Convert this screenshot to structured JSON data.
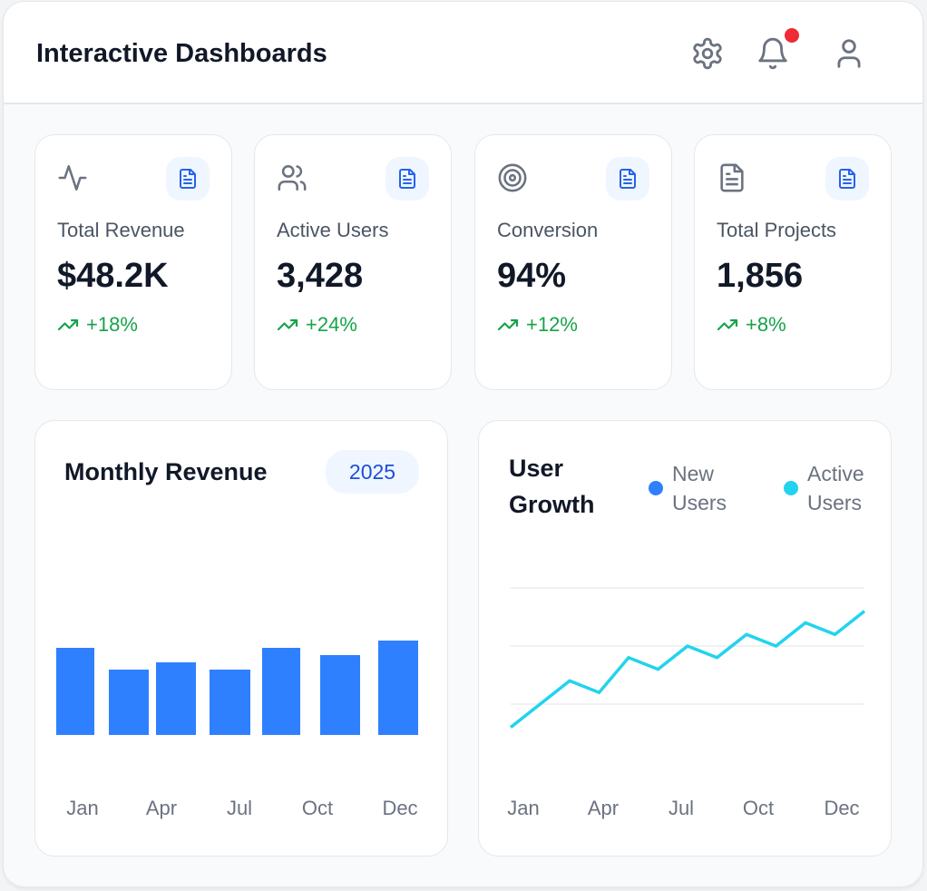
{
  "header": {
    "title": "Interactive Dashboards",
    "icons": [
      "gear-icon",
      "bell-icon",
      "user-icon"
    ],
    "notification_dot_color": "#ef2b35"
  },
  "kpis": [
    {
      "label": "Total Revenue",
      "value": "$48.2K",
      "delta": "+18%",
      "icon": "activity-icon"
    },
    {
      "label": "Active Users",
      "value": "3,428",
      "delta": "+24%",
      "icon": "users-icon"
    },
    {
      "label": "Conversion",
      "value": "94%",
      "delta": "+12%",
      "icon": "target-icon"
    },
    {
      "label": "Total Projects",
      "value": "1,856",
      "delta": "+8%",
      "icon": "file-text-icon"
    }
  ],
  "colors": {
    "accent": "#2f80ff",
    "line": "#22d3ee",
    "positive": "#16a34a"
  },
  "chart_data": [
    {
      "type": "bar",
      "title": "Monthly Revenue",
      "badge": "2025",
      "tick_labels": [
        "Jan",
        "Apr",
        "Jul",
        "Oct",
        "Dec"
      ],
      "values": [
        60,
        45,
        50,
        45,
        60,
        55,
        65
      ],
      "ylim": [
        0,
        100
      ],
      "grid": false,
      "color": "#2f80ff"
    },
    {
      "type": "line",
      "title": "User Growth",
      "legend": [
        {
          "name": "New Users",
          "color": "#2f80ff"
        },
        {
          "name": "Active Users",
          "color": "#22d3ee"
        }
      ],
      "legend_position": "top-right",
      "tick_labels": [
        "Jan",
        "Apr",
        "Jul",
        "Oct",
        "Dec"
      ],
      "series": [
        {
          "name": "Active Users",
          "values": [
            15,
            25,
            35,
            30,
            45,
            40,
            50,
            45,
            55,
            50,
            60,
            55,
            65
          ]
        }
      ],
      "ylim": [
        0,
        100
      ],
      "grid": true
    }
  ]
}
